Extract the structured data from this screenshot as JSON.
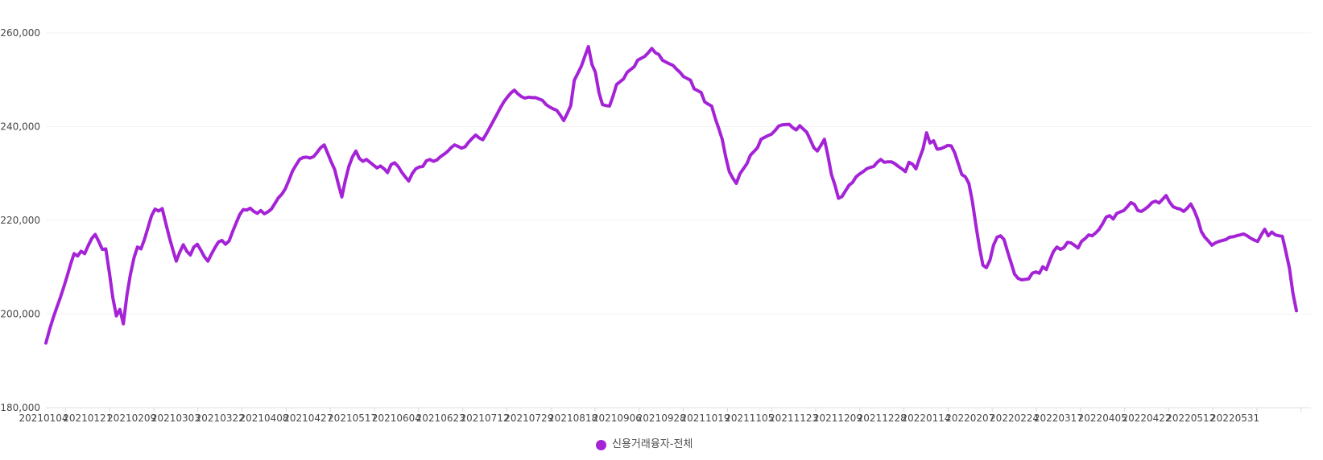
{
  "chart_data": {
    "type": "line",
    "title": "",
    "legend": {
      "label": "신용거래융자-전체",
      "position": "bottom-center"
    },
    "series_name": "신용거래융자-전체",
    "line_color": "#a523d7",
    "grid": true,
    "background_color": "#ffffff",
    "y_axis": {
      "min": 180000,
      "max": 260000,
      "tick_step": 20000,
      "tick_labels": [
        "180,000",
        "200,000",
        "220,000",
        "240,000",
        "260,000"
      ]
    },
    "x_axis": {
      "unit": "trading day (YYYYMMDD)",
      "tick_labels": [
        "20210104",
        "20210121",
        "20210209",
        "20210303",
        "20210322",
        "20210408",
        "20210427",
        "20210517",
        "20210604",
        "20210623",
        "20210712",
        "20210729",
        "20210818",
        "20210906",
        "20210928",
        "20211019",
        "20211105",
        "20211123",
        "20211209",
        "20211228",
        "20220114",
        "20220207",
        "20220224",
        "20220317",
        "20220405",
        "20220422",
        "20220512",
        "20220531"
      ]
    },
    "x_start_label": "20210104",
    "values": [
      193800,
      196600,
      199000,
      201200,
      203300,
      205600,
      208000,
      210600,
      212900,
      212400,
      213400,
      212900,
      214600,
      216100,
      217000,
      215500,
      213800,
      213900,
      209000,
      203500,
      199600,
      201000,
      197900,
      204000,
      208500,
      212000,
      214300,
      213900,
      216000,
      218500,
      221000,
      222400,
      222000,
      222500,
      219500,
      216500,
      213800,
      211300,
      213200,
      214800,
      213400,
      212600,
      214300,
      214900,
      213600,
      212200,
      211300,
      212800,
      214200,
      215400,
      215700,
      214900,
      215600,
      217600,
      219400,
      221200,
      222300,
      222200,
      222600,
      221900,
      221500,
      222100,
      221400,
      221800,
      222400,
      223600,
      224800,
      225600,
      226800,
      228600,
      230500,
      231800,
      233000,
      233400,
      233500,
      233300,
      233600,
      234500,
      235500,
      236100,
      234300,
      232500,
      230800,
      227800,
      225000,
      228500,
      231500,
      233500,
      234800,
      233200,
      232600,
      233000,
      232400,
      231800,
      231200,
      231600,
      231000,
      230200,
      231900,
      232300,
      231500,
      230300,
      229300,
      228400,
      230000,
      231000,
      231400,
      231500,
      232700,
      233000,
      232600,
      232900,
      233600,
      234100,
      234700,
      235500,
      236100,
      235800,
      235400,
      235700,
      236700,
      237500,
      238200,
      237600,
      237200,
      238400,
      239800,
      241200,
      242600,
      244000,
      245300,
      246300,
      247200,
      247800,
      247000,
      246400,
      246100,
      246300,
      246200,
      246200,
      245900,
      245600,
      244700,
      244200,
      243800,
      243500,
      242500,
      241300,
      242800,
      244500,
      249900,
      251400,
      252900,
      255000,
      257100,
      253300,
      251600,
      247300,
      244700,
      244500,
      244400,
      246500,
      249000,
      249600,
      250200,
      251600,
      252200,
      252800,
      254200,
      254600,
      255000,
      255800,
      256700,
      255800,
      255400,
      254200,
      253800,
      253400,
      253100,
      252300,
      251600,
      250700,
      250300,
      249900,
      248100,
      247700,
      247300,
      245300,
      244800,
      244400,
      241800,
      239600,
      237300,
      233500,
      230400,
      229000,
      227900,
      229900,
      231000,
      232100,
      233900,
      234700,
      235500,
      237300,
      237700,
      238100,
      238400,
      239200,
      240100,
      240400,
      240450,
      240500,
      239800,
      239300,
      240200,
      239500,
      238800,
      237200,
      235500,
      234800,
      236000,
      237300,
      233800,
      229800,
      227500,
      224700,
      225100,
      226300,
      227500,
      228100,
      229300,
      229900,
      230400,
      231000,
      231300,
      231500,
      232400,
      233000,
      232400,
      232500,
      232500,
      232100,
      231500,
      231000,
      230400,
      232400,
      232000,
      231000,
      233200,
      235300,
      238700,
      236500,
      237000,
      235200,
      235300,
      235600,
      236000,
      235900,
      234400,
      232100,
      229800,
      229300,
      227900,
      224100,
      219000,
      214300,
      210400,
      209900,
      211500,
      214700,
      216400,
      216700,
      215900,
      213300,
      210900,
      208500,
      207600,
      207300,
      207400,
      207500,
      208700,
      209000,
      208700,
      210100,
      209500,
      211500,
      213300,
      214300,
      213800,
      214200,
      215300,
      215200,
      214700,
      214100,
      215500,
      216100,
      216900,
      216700,
      217300,
      218100,
      219300,
      220700,
      221000,
      220300,
      221500,
      221800,
      222100,
      222900,
      223800,
      223400,
      222100,
      221900,
      222400,
      223000,
      223800,
      224100,
      223700,
      224500,
      225300,
      223900,
      222900,
      222600,
      222400,
      221900,
      222600,
      223500,
      222100,
      220200,
      217600,
      216400,
      215600,
      214700,
      215200,
      215500,
      215700,
      215900,
      216400,
      216500,
      216700,
      216900,
      217100,
      216700,
      216200,
      215800,
      215500,
      216900,
      218100,
      216700,
      217500,
      216900,
      216700,
      216600,
      213300,
      209800,
      204500,
      200700
    ],
    "colors": {
      "gridline": "#f0f0f0",
      "axis_line": "#e0e0e0",
      "tick": "#d9d9d9",
      "label_text": "#464646"
    }
  }
}
